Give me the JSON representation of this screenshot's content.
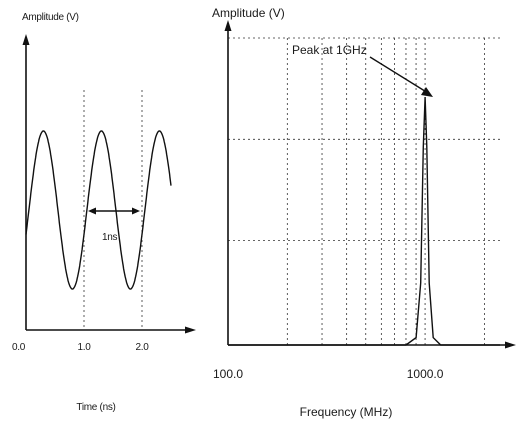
{
  "chart_data": [
    {
      "type": "line",
      "title": "",
      "ylabel": "Amplitude (V)",
      "xlabel": "Time (ns)",
      "x_ticks": [
        "0.0",
        "1.0",
        "2.0"
      ],
      "xlim": [
        0,
        2.6
      ],
      "grid": "vertical dashed at 1.0 and 2.0",
      "waveform": "sine",
      "frequency_ghz": 1,
      "period_ns": 1,
      "series": [
        {
          "x": [
            0.0,
            0.1,
            0.2,
            0.3,
            0.4,
            0.5,
            0.6,
            0.7,
            0.8,
            0.9,
            1.0,
            1.1,
            1.2,
            1.3,
            1.4,
            1.5,
            1.6,
            1.7,
            1.8,
            1.9,
            2.0,
            2.1,
            2.2,
            2.3,
            2.4,
            2.5
          ],
          "y": [
            0.0,
            0.59,
            0.95,
            0.95,
            0.59,
            0.0,
            -0.59,
            -0.95,
            -0.95,
            -0.59,
            0.0,
            0.59,
            0.95,
            0.95,
            0.59,
            0.0,
            -0.59,
            -0.95,
            -0.95,
            -0.59,
            0.0,
            0.59,
            0.95,
            0.95,
            0.59,
            0.0
          ]
        }
      ],
      "annotations": [
        {
          "text": "1ns",
          "type": "double-arrow",
          "from_x": 1.0,
          "to_x": 2.0
        }
      ]
    },
    {
      "type": "line",
      "title": "",
      "ylabel": "Amplitude (V)",
      "xlabel": "Frequency (MHz)",
      "x_scale": "log",
      "x_ticks": [
        "100.0",
        "1000.0"
      ],
      "xlim": [
        100,
        2400
      ],
      "grid": "dashed log grid",
      "series": [
        {
          "x": [
            100,
            500,
            800,
            900,
            950,
            980,
            1000,
            1020,
            1050,
            1100,
            1200,
            1500,
            2400
          ],
          "y": [
            0.0,
            0.0,
            0.0,
            0.03,
            0.25,
            0.8,
            1.0,
            0.8,
            0.25,
            0.03,
            0.0,
            0.0,
            0.0
          ]
        }
      ],
      "annotations": [
        {
          "text": "Peak at 1GHz",
          "type": "arrow",
          "x": 1000,
          "y": 1.0
        }
      ]
    }
  ]
}
